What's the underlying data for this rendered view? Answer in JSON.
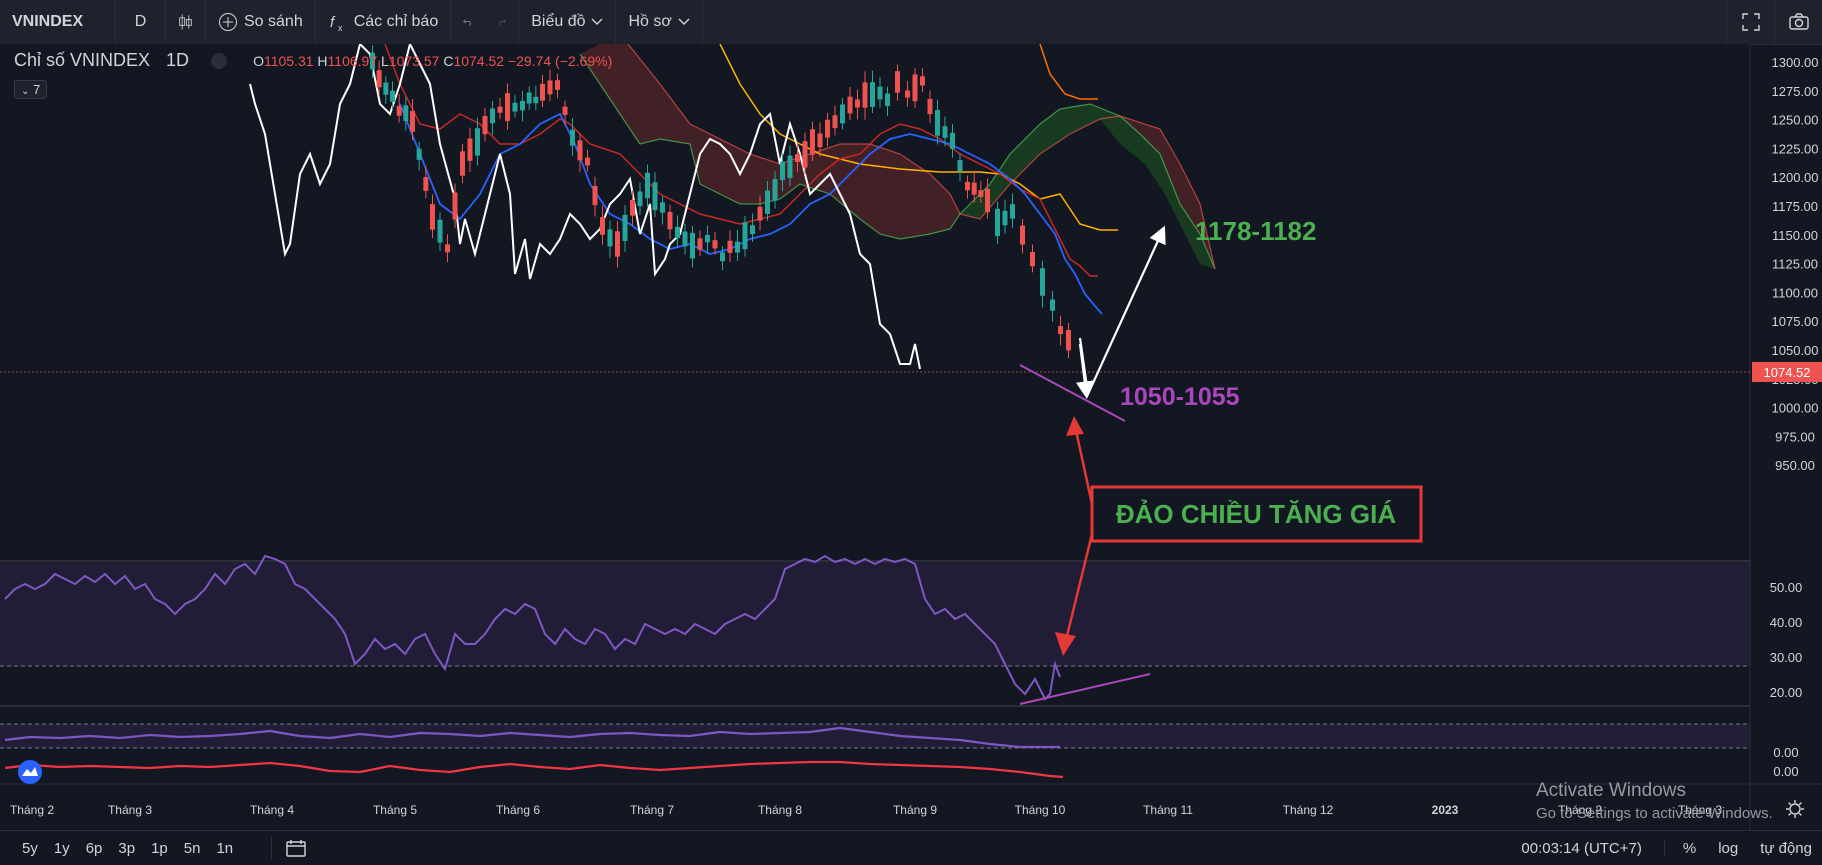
{
  "toolbar": {
    "symbol": "VNINDEX",
    "interval": "D",
    "compare_label": "So sánh",
    "indicators_label": "Các chỉ báo",
    "chart_type_label": "Biểu đồ",
    "profile_label": "Hồ sơ"
  },
  "legend": {
    "title": "Chỉ số VNINDEX",
    "timeframe": "1D",
    "o_label": "O",
    "o_value": "1105.31",
    "h_label": "H",
    "h_value": "1106.97",
    "l_label": "L",
    "l_value": "1073.57",
    "c_label": "C",
    "c_value": "1074.52",
    "change": "−29.74 (−2.69%)",
    "indicator_count": "7"
  },
  "price_axis": {
    "labels": [
      "1300.00",
      "1275.00",
      "1250.00",
      "1225.00",
      "1200.00",
      "1175.00",
      "1150.00",
      "1125.00",
      "1100.00",
      "1075.00",
      "1050.00",
      "1025.00",
      "1000.00",
      "975.00",
      "950.00"
    ],
    "last_price": "1074.52",
    "last_price_color": "#ef5350"
  },
  "rsi_axis": {
    "labels": [
      "50.00",
      "40.00",
      "30.00",
      "20.00"
    ]
  },
  "osc_axis": {
    "labels": [
      "0.00",
      "0.00"
    ]
  },
  "time_axis": {
    "labels": [
      "Tháng 2",
      "Tháng 3",
      "Tháng 4",
      "Tháng 5",
      "Tháng 6",
      "Tháng 7",
      "Tháng 8",
      "Tháng 9",
      "Tháng 10",
      "Tháng 11",
      "Tháng 12",
      "2023",
      "Tháng 2",
      "Tháng 3"
    ]
  },
  "annotations": {
    "target_label": "1178-1182",
    "support_label": "1050-1055",
    "reversal_label": "ĐẢO CHIỀU TĂNG GIÁ",
    "target_color": "#4caf50",
    "support_color": "#ab47bc",
    "reversal_border_color": "#e53935"
  },
  "bottom_bar": {
    "ranges": [
      "5y",
      "1y",
      "6p",
      "3p",
      "1p",
      "5n",
      "1n"
    ],
    "time": "00:03:14 (UTC+7)",
    "percent": "%",
    "log": "log",
    "auto": "tự động"
  },
  "watermark": {
    "line1": "Activate Windows",
    "line2": "Go to Settings to activate Windows."
  },
  "icons": [
    "candles-icon",
    "plus-circle-icon",
    "fx-icon",
    "undo-icon",
    "redo-icon",
    "chevron-down-icon",
    "fullscreen-icon",
    "camera-icon",
    "date-range-icon",
    "gear-icon"
  ]
}
